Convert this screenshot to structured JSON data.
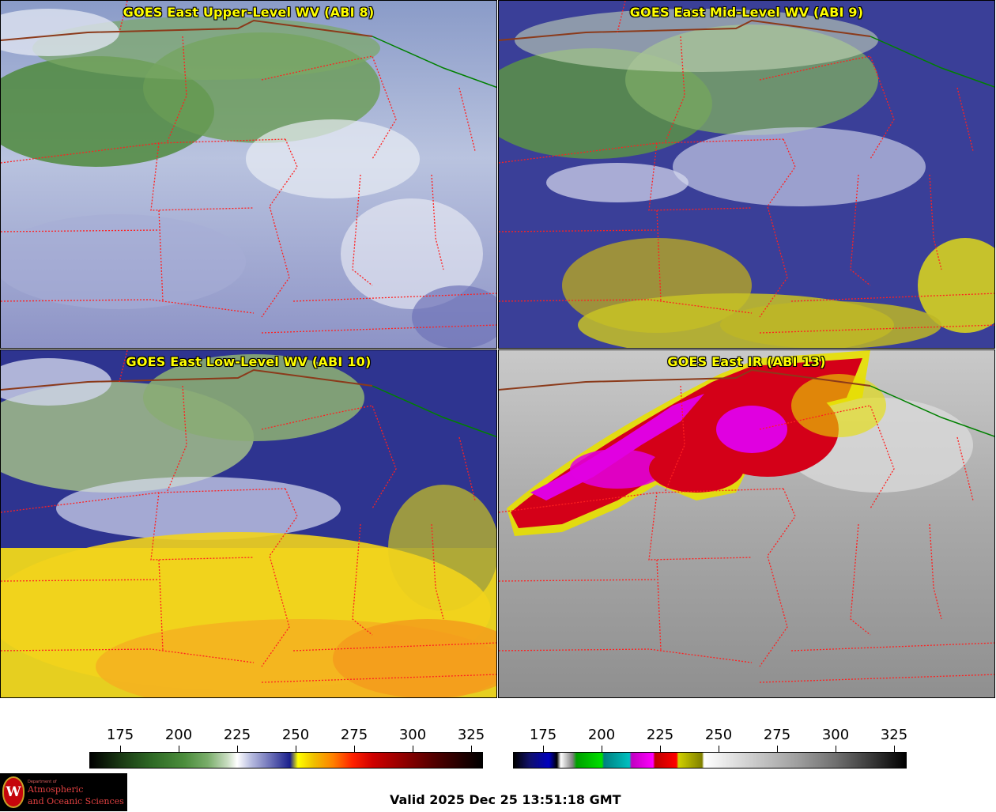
{
  "panels": [
    {
      "title": "GOES East Upper-Level WV (ABI 8)",
      "scheme": "wv-upper"
    },
    {
      "title": "GOES East Mid-Level WV (ABI 9)",
      "scheme": "wv-mid"
    },
    {
      "title": "GOES East Low-Level WV (ABI 10)",
      "scheme": "wv-low"
    },
    {
      "title": "GOES East IR (ABI 13)",
      "scheme": "ir"
    }
  ],
  "colorbars": {
    "wv": {
      "ticks": [
        "175",
        "200",
        "225",
        "250",
        "275",
        "300",
        "325"
      ]
    },
    "ir": {
      "ticks": [
        "175",
        "200",
        "225",
        "250",
        "275",
        "300",
        "325"
      ]
    }
  },
  "colors": {
    "title_text": "#ffff00",
    "state_borders": "#ff2020",
    "country_border": "#8b3a1a",
    "lake_outline": "#008000"
  },
  "logo": {
    "seal_letter": "W",
    "department": "Department of",
    "line1": "Atmospheric",
    "line2": "and Oceanic Sciences"
  },
  "valid_time": "Valid 2025 Dec 25 13:51:18 GMT"
}
